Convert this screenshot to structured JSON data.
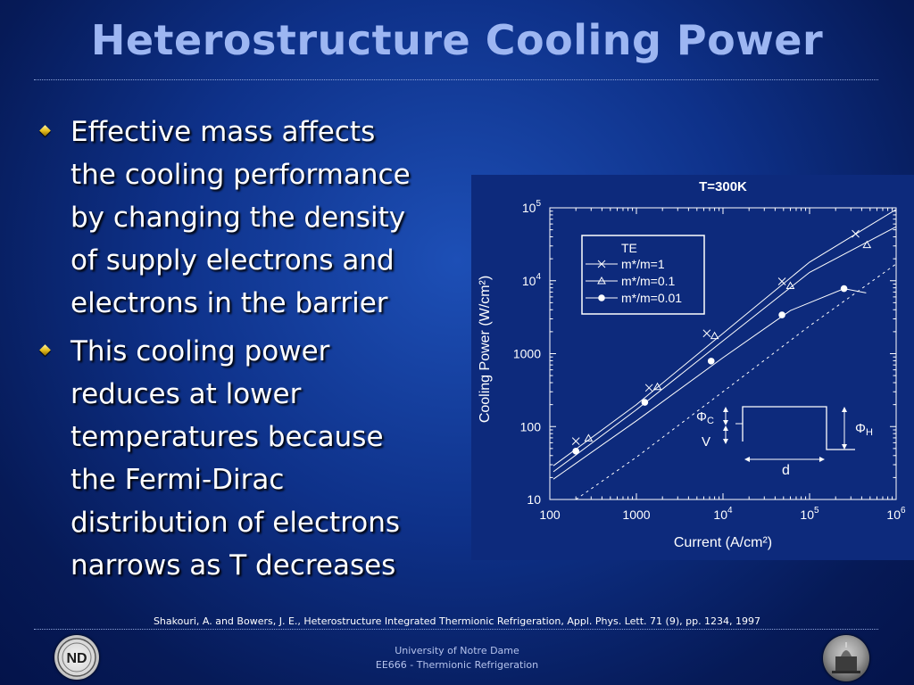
{
  "slide": {
    "title": "Heterostructure Cooling Power",
    "bullets": [
      [
        "Effective mass affects",
        "the cooling performance",
        "by changing the density",
        "of supply electrons and",
        "electrons in the barrier"
      ],
      [
        "This cooling power",
        "reduces at lower",
        "temperatures because",
        "the Fermi-Dirac",
        "distribution of electrons",
        "narrows as T decreases"
      ]
    ],
    "citation": "Shakouri, A. and Bowers, J. E., Heterostructure Integrated Thermionic Refrigeration, Appl. Phys. Lett. 71 (9), pp. 1234, 1997",
    "footer_line1": "University of Notre Dame",
    "footer_line2": "EE666 - Thermionic Refrigeration",
    "logo_left_text": "ND",
    "logo_right_text": ""
  },
  "colors": {
    "title": "#9db6f2",
    "background": "#0e3189",
    "chart_line": "#ffffff"
  },
  "chart_data": {
    "type": "line",
    "title": "T=300K",
    "xlabel": "Current (A/cm²)",
    "ylabel": "Cooling Power (W/cm²)",
    "xscale": "log",
    "yscale": "log",
    "xlim": [
      100,
      1000000
    ],
    "ylim": [
      10,
      100000
    ],
    "x_ticks": [
      {
        "value": 100,
        "label": "100"
      },
      {
        "value": 1000,
        "label": "1000"
      },
      {
        "value": 10000,
        "base": "10",
        "exp": "4"
      },
      {
        "value": 100000,
        "base": "10",
        "exp": "5"
      },
      {
        "value": 1000000,
        "base": "10",
        "exp": "6"
      }
    ],
    "y_ticks": [
      {
        "value": 10,
        "label": "10"
      },
      {
        "value": 100,
        "label": "100"
      },
      {
        "value": 1000,
        "label": "1000"
      },
      {
        "value": 10000,
        "base": "10",
        "exp": "4"
      },
      {
        "value": 100000,
        "base": "10",
        "exp": "5"
      }
    ],
    "legend_title": "TE",
    "legend_position": "top-left",
    "series": [
      {
        "name": "m*/m=1",
        "marker": "x",
        "x": [
          200,
          1400,
          6500,
          48000,
          340000
        ],
        "y": [
          63,
          340,
          1900,
          9800,
          44000
        ]
      },
      {
        "name": "m*/m=0.1",
        "marker": "triangle",
        "x": [
          280,
          1750,
          8000,
          60000,
          460000
        ],
        "y": [
          69,
          350,
          1750,
          8500,
          31000
        ]
      },
      {
        "name": "m*/m=0.01",
        "marker": "dot",
        "x": [
          200,
          1250,
          7300,
          48000,
          250000
        ],
        "y": [
          46,
          215,
          790,
          3400,
          7800
        ]
      }
    ],
    "lines": [
      {
        "series": "m*/m=1",
        "style": "solid",
        "x": [
          110,
          1000,
          10000,
          100000,
          1000000
        ],
        "y": [
          29,
          200,
          1900,
          18000,
          95000
        ]
      },
      {
        "series": "m*/m=0.1",
        "style": "solid",
        "x": [
          110,
          1000,
          10000,
          100000,
          1000000
        ],
        "y": [
          24,
          170,
          1500,
          13000,
          55000
        ]
      },
      {
        "series": "m*/m=0.01",
        "style": "solid",
        "x": [
          110,
          1000,
          10000,
          60000,
          250000,
          450000
        ],
        "y": [
          19,
          120,
          880,
          3900,
          7800,
          6800
        ]
      },
      {
        "series": "TE",
        "style": "dashed",
        "x": [
          200,
          1000,
          10000,
          100000,
          1000000
        ],
        "y": [
          10,
          38,
          300,
          2400,
          17000
        ]
      }
    ],
    "inset": {
      "phi_c": "Φ",
      "phi_c_sub": "C",
      "phi_h": "Φ",
      "phi_h_sub": "H",
      "v": "V",
      "d": "d"
    }
  }
}
